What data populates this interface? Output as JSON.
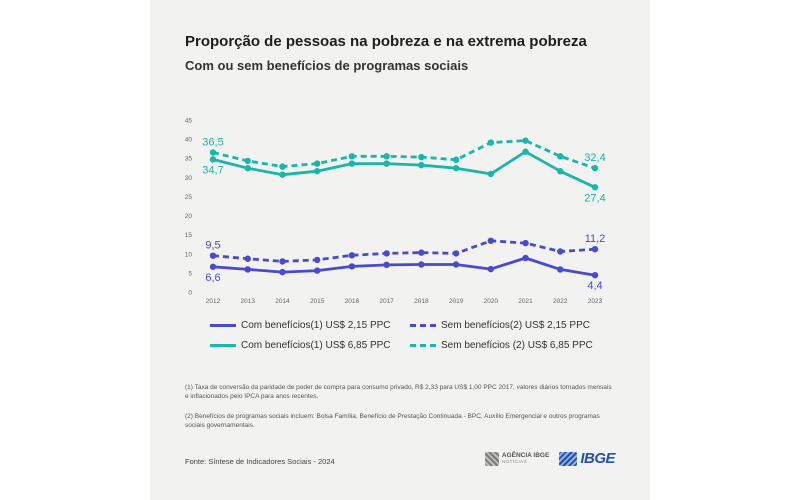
{
  "chart_data": {
    "type": "line",
    "title": "Proporção de pessoas na pobreza e na extrema pobreza",
    "subtitle": "Com ou sem benefícios de programas sociais",
    "x": [
      "2012",
      "2013",
      "2014",
      "2015",
      "2016",
      "2017",
      "2018",
      "2019",
      "2020",
      "2021",
      "2022",
      "2023"
    ],
    "yticks": [
      "0",
      "5",
      "10",
      "15",
      "20",
      "25",
      "30",
      "35",
      "40",
      "45"
    ],
    "ylim": [
      0,
      45
    ],
    "grid": false,
    "series": [
      {
        "name": "Com benefícios(1)  US$ 2,15 PPC",
        "color": "#4a4ad0",
        "style": "solid",
        "values": [
          6.6,
          5.9,
          5.2,
          5.6,
          6.7,
          7.1,
          7.2,
          7.2,
          6.0,
          8.9,
          5.9,
          4.4
        ]
      },
      {
        "name": "Sem benefícios(2)  US$ 2,15 PPC",
        "color": "#4a4ad0",
        "style": "dashed",
        "values": [
          9.5,
          8.7,
          8.0,
          8.4,
          9.6,
          10.1,
          10.3,
          10.1,
          13.4,
          12.8,
          10.6,
          11.2
        ]
      },
      {
        "name": "Com benefícios(1) US$ 6,85 PPC",
        "color": "#19b6aa",
        "style": "solid",
        "values": [
          34.7,
          32.4,
          30.7,
          31.6,
          33.6,
          33.6,
          33.2,
          32.4,
          30.9,
          36.7,
          31.6,
          27.4
        ]
      },
      {
        "name": "Sem benefícios (2) US$ 6,85 PPC",
        "color": "#19b6aa",
        "style": "dashed",
        "values": [
          36.5,
          34.3,
          32.8,
          33.6,
          35.5,
          35.5,
          35.3,
          34.6,
          39.1,
          39.6,
          35.5,
          32.4
        ]
      }
    ],
    "annotations": [
      {
        "series": 0,
        "index": 0,
        "text": "6,6",
        "pos": "below"
      },
      {
        "series": 0,
        "index": 11,
        "text": "4,4",
        "pos": "below"
      },
      {
        "series": 1,
        "index": 0,
        "text": "9,5",
        "pos": "above"
      },
      {
        "series": 1,
        "index": 11,
        "text": "11,2",
        "pos": "above"
      },
      {
        "series": 2,
        "index": 0,
        "text": "34,7",
        "pos": "below"
      },
      {
        "series": 2,
        "index": 11,
        "text": "27,4",
        "pos": "below"
      },
      {
        "series": 3,
        "index": 0,
        "text": "36,5",
        "pos": "above"
      },
      {
        "series": 3,
        "index": 11,
        "text": "32,4",
        "pos": "above"
      }
    ]
  },
  "legend": [
    {
      "label": "Com benefícios(1)  US$ 2,15 PPC",
      "color": "#4a4ad0",
      "style": "solid"
    },
    {
      "label": "Sem benefícios(2)  US$ 2,15 PPC",
      "color": "#4a4ad0",
      "style": "dashed"
    },
    {
      "label": "Com benefícios(1) US$ 6,85 PPC",
      "color": "#19b6aa",
      "style": "solid"
    },
    {
      "label": "Sem benefícios (2) US$ 6,85 PPC",
      "color": "#19b6aa",
      "style": "dashed"
    }
  ],
  "notes": {
    "note1": "(1) Taxa de conversão da paridade de poder de compra para consumo privado, R$ 2,33 para US$ 1,00 PPC 2017, valores diários tornados mensais e inflacionados pelo IPCA para anos recentes.",
    "note2": "(2) Benefícios de programas sociais incluem: Bolsa Família, Benefício de Prestação Continuada - BPC, Auxílio Emergencial e outros programas sociais governamentais."
  },
  "source": "Fonte: Síntese de Indicadores Sociais - 2024",
  "logos": {
    "agencia_name": "AGÊNCIA IBGE",
    "agencia_sub": "NOTÍCIAS",
    "ibge": "IBGE",
    "agencia_icon": "agencia-ibge-logo-icon",
    "ibge_icon": "ibge-logo-icon"
  }
}
